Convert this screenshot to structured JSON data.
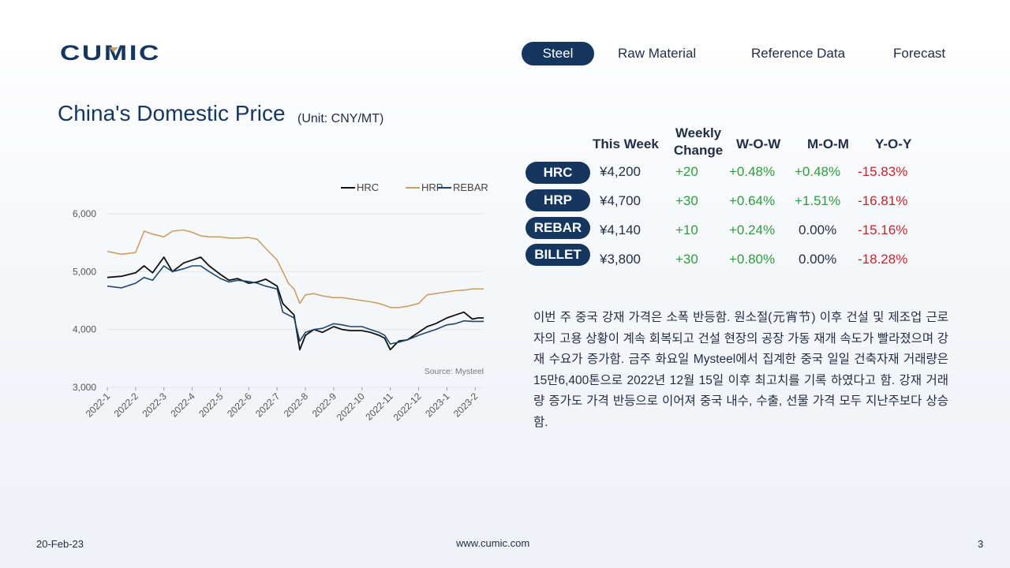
{
  "brand": {
    "logo_text": "CUMIC"
  },
  "nav": {
    "tabs": [
      "Steel",
      "Raw Material",
      "Reference Data",
      "Forecast"
    ],
    "active": "Steel"
  },
  "header": {
    "title": "China's Domestic Price",
    "unit": "(Unit: CNY/MT)"
  },
  "table": {
    "headers": {
      "this_week": "This Week",
      "weekly_change_1": "Weekly",
      "weekly_change_2": "Change",
      "wow": "W-O-W",
      "mom": "M-O-M",
      "yoy": "Y-O-Y"
    },
    "rows": [
      {
        "name": "HRC",
        "price": "¥4,200",
        "change": "+20",
        "wow": "+0.48%",
        "mom": "+0.48%",
        "yoy": "-15.83%"
      },
      {
        "name": "HRP",
        "price": "¥4,700",
        "change": "+30",
        "wow": "+0.64%",
        "mom": "+1.51%",
        "yoy": "-16.81%"
      },
      {
        "name": "REBAR",
        "price": "¥4,140",
        "change": "+10",
        "wow": "+0.24%",
        "mom": "0.00%",
        "yoy": "-15.16%"
      },
      {
        "name": "BILLET",
        "price": "¥3,800",
        "change": "+30",
        "wow": "+0.80%",
        "mom": "0.00%",
        "yoy": "-18.28%"
      }
    ]
  },
  "commentary": "이번 주 중국 강재 가격은 소폭 반등함. 원소절(元宵节) 이후 건설 및 제조업 근로자의 고용 상황이 계속 회복되고 건설 현장의 공장 가동 재개 속도가 빨라졌으며 강재 수요가 증가함. 금주 화요일 Mysteel에서 집계한 중국 일일 건축자재 거래량은 15만6,400톤으로 2022년 12월 15일 이후 최고치를 기록 하였다고 함. 강재 거래량 증가도 가격 반등으로 이어져 중국 내수, 수출, 선물 가격 모두 지난주보다 상승함.",
  "colors": {
    "navy": "#14365f",
    "hrc": "#111111",
    "hrp": "#c9a066",
    "rebar": "#1e4770",
    "positive": "#2e9d3c",
    "negative": "#c0272d"
  },
  "chart_data": {
    "type": "line",
    "source": "Source: Mysteel",
    "legend_position": "top-right",
    "ylim": [
      3000,
      6000
    ],
    "yticks": [
      "6,000",
      "5,000",
      "4,000",
      "3,000"
    ],
    "xticks": [
      "2022-1",
      "2022-2",
      "2022-3",
      "2022-4",
      "2022-5",
      "2022-6",
      "2022-7",
      "2022-8",
      "2022-9",
      "2022-10",
      "2022-11",
      "2022-12",
      "2023-1",
      "2023-2"
    ],
    "x": [
      0,
      0.5,
      1,
      1.3,
      1.6,
      2.0,
      2.3,
      2.7,
      3.0,
      3.3,
      3.6,
      4.0,
      4.3,
      4.6,
      5.0,
      5.3,
      5.6,
      6.0,
      6.2,
      6.4,
      6.6,
      6.8,
      7.0,
      7.3,
      7.6,
      8.0,
      8.3,
      8.6,
      9.0,
      9.3,
      9.6,
      9.8,
      10.0,
      10.3,
      10.6,
      11.0,
      11.3,
      11.6,
      12.0,
      12.3,
      12.6,
      12.9,
      13.1,
      13.3
    ],
    "series": [
      {
        "name": "HRC",
        "values": [
          4900,
          4920,
          4980,
          5100,
          4980,
          5250,
          5000,
          5150,
          5200,
          5250,
          5100,
          4950,
          4850,
          4880,
          4800,
          4820,
          4870,
          4750,
          4450,
          4350,
          4250,
          3650,
          3900,
          4000,
          3950,
          4050,
          4000,
          3980,
          3980,
          3950,
          3900,
          3850,
          3650,
          3800,
          3820,
          3950,
          4050,
          4100,
          4200,
          4250,
          4300,
          4180,
          4200,
          4200
        ]
      },
      {
        "name": "HRP",
        "values": [
          5350,
          5300,
          5330,
          5700,
          5650,
          5600,
          5700,
          5720,
          5680,
          5620,
          5600,
          5600,
          5580,
          5580,
          5590,
          5560,
          5400,
          5200,
          5000,
          4800,
          4700,
          4450,
          4600,
          4620,
          4580,
          4550,
          4550,
          4530,
          4500,
          4480,
          4450,
          4420,
          4380,
          4380,
          4400,
          4450,
          4600,
          4620,
          4650,
          4670,
          4680,
          4700,
          4700,
          4700
        ]
      },
      {
        "name": "REBAR",
        "values": [
          4750,
          4720,
          4800,
          4900,
          4850,
          5100,
          5000,
          5050,
          5100,
          5100,
          5000,
          4880,
          4820,
          4850,
          4830,
          4800,
          4750,
          4700,
          4300,
          4250,
          4200,
          3800,
          3950,
          4000,
          4020,
          4100,
          4080,
          4050,
          4050,
          4000,
          3950,
          3900,
          3750,
          3780,
          3820,
          3900,
          3950,
          4000,
          4080,
          4100,
          4150,
          4140,
          4140,
          4140
        ]
      }
    ]
  },
  "footer": {
    "date": "20-Feb-23",
    "site": "www.cumic.com",
    "page": "3"
  }
}
